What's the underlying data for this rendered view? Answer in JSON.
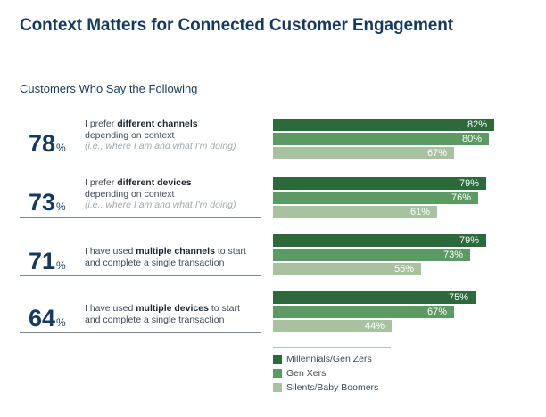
{
  "title": "Context Matters for Connected Customer Engagement",
  "subtitle": "Customers Who Say the Following",
  "chart_data": {
    "type": "bar",
    "orientation": "horizontal",
    "title": "Context Matters for Connected Customer Engagement",
    "subtitle": "Customers Who Say the Following",
    "categories": [
      "I prefer different channels depending on context (i.e., where I am and what I'm doing)",
      "I prefer different devices depending on context (i.e., where I am and what I'm doing)",
      "I have used multiple channels to start and complete a single transaction",
      "I have used multiple devices to start and complete a single transaction"
    ],
    "overall": [
      78,
      73,
      71,
      64
    ],
    "series": [
      {
        "name": "Millennials/Gen Zers",
        "color": "#2d6a3b",
        "values": [
          82,
          79,
          79,
          75
        ]
      },
      {
        "name": "Gen Xers",
        "color": "#5b9a62",
        "values": [
          80,
          76,
          73,
          67
        ]
      },
      {
        "name": "Silents/Baby Boomers",
        "color": "#a8c2a0",
        "values": [
          67,
          61,
          55,
          44
        ]
      }
    ],
    "unit": "%",
    "xlim": [
      0,
      100
    ]
  },
  "rows": [
    {
      "overall": "78",
      "pre": "I prefer ",
      "bold": "different channels",
      "post": "",
      "line2": "depending on context",
      "note": "(i.e., where I am and what I'm doing)",
      "labels": [
        "82%",
        "80%",
        "67%"
      ]
    },
    {
      "overall": "73",
      "pre": "I prefer ",
      "bold": "different devices",
      "post": "",
      "line2": "depending on context",
      "note": "(i.e., where I am and what I'm doing)",
      "labels": [
        "79%",
        "76%",
        "61%"
      ]
    },
    {
      "overall": "71",
      "pre": "I have used ",
      "bold": "multiple channels",
      "post": " to start",
      "line2": "and complete a single transaction",
      "note": "",
      "labels": [
        "79%",
        "73%",
        "55%"
      ]
    },
    {
      "overall": "64",
      "pre": "I have used ",
      "bold": "multiple devices",
      "post": " to start",
      "line2": "and complete a single transaction",
      "note": "",
      "labels": [
        "75%",
        "67%",
        "44%"
      ]
    }
  ],
  "percent_symbol": "%",
  "legend": [
    "Millennials/Gen Zers",
    "Gen Xers",
    "Silents/Baby Boomers"
  ]
}
